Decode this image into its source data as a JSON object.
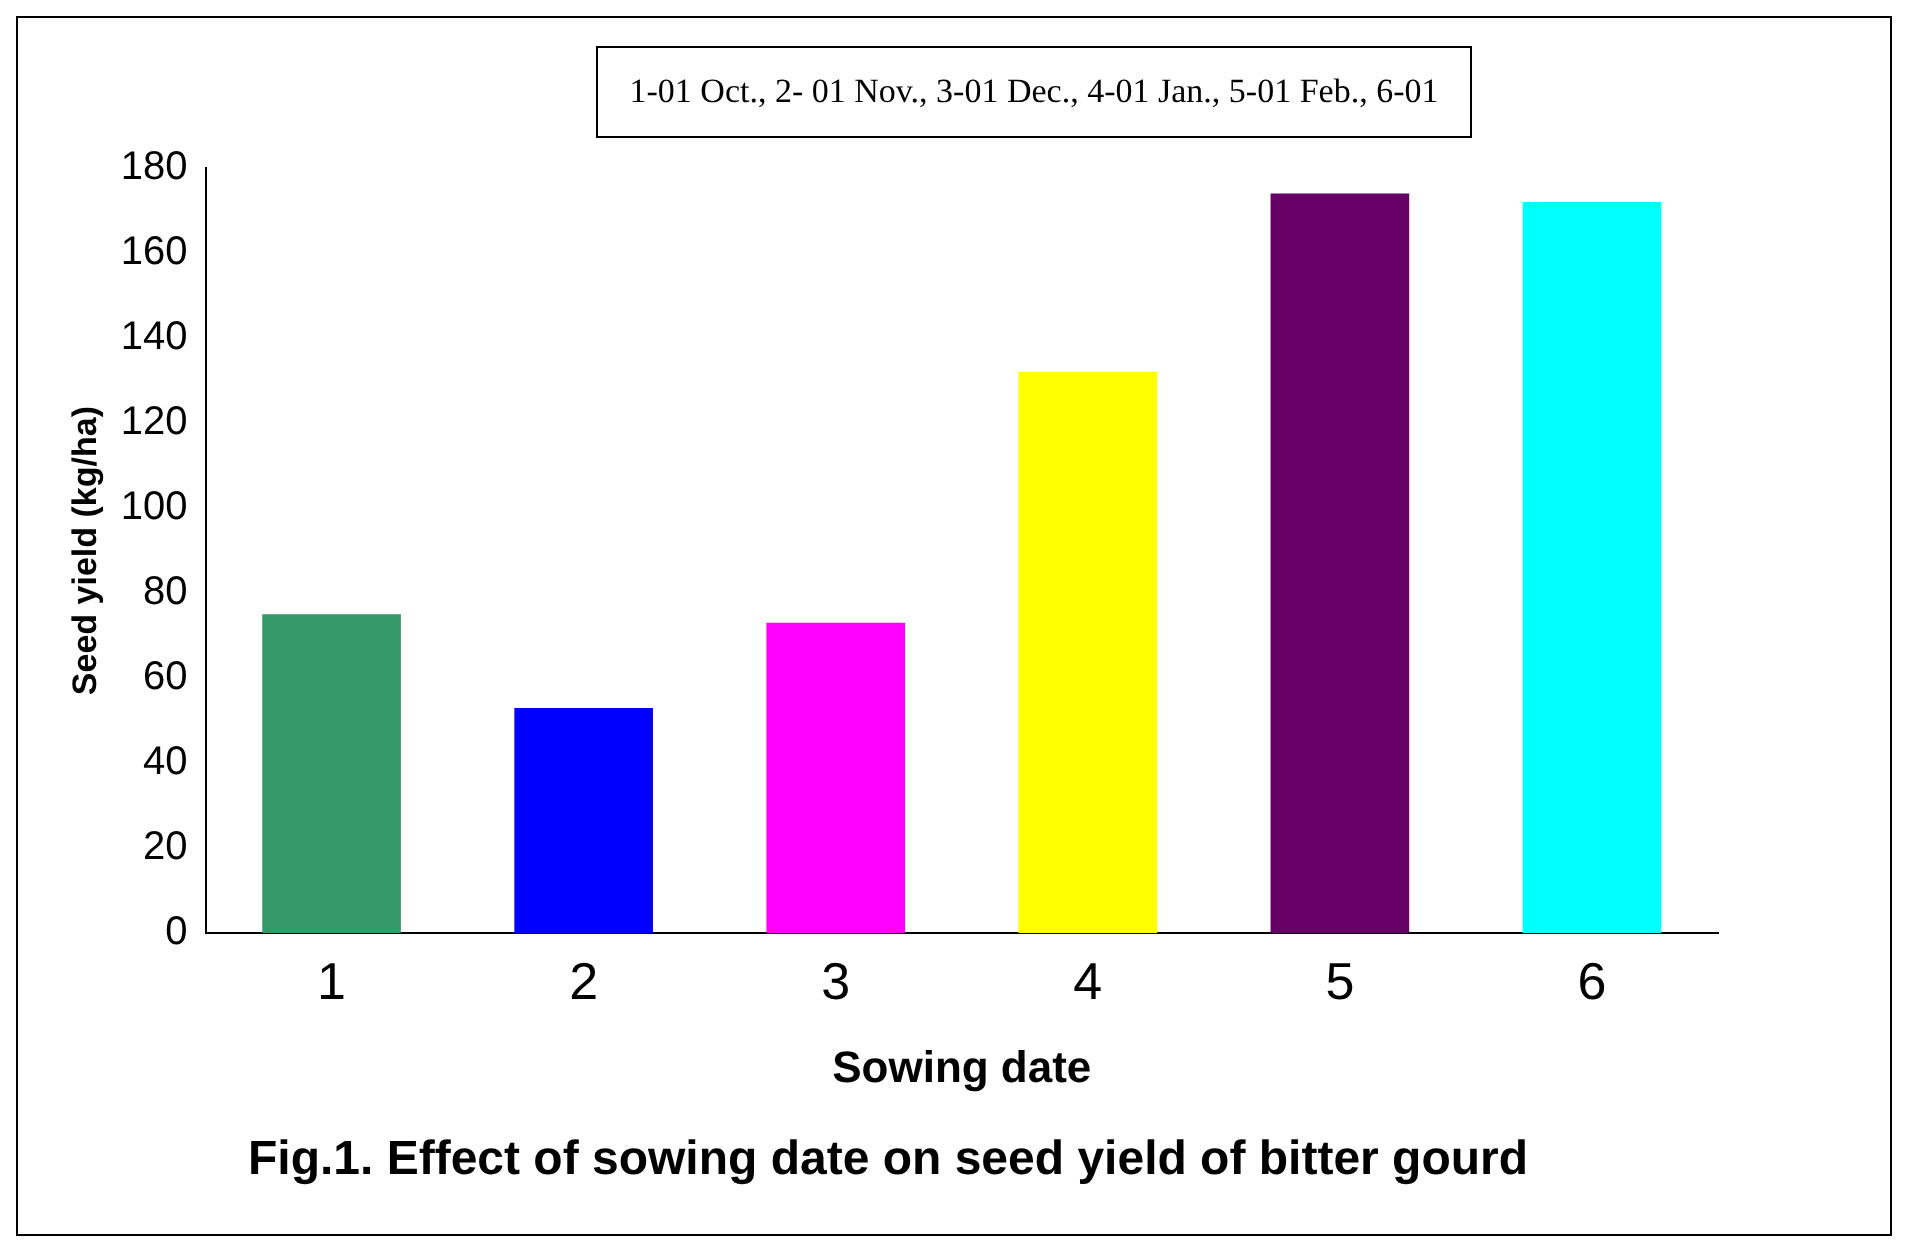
{
  "chart_data": {
    "type": "bar",
    "title": "Fig.1. Effect of sowing date on seed yield of bitter gourd",
    "xlabel": "Sowing date",
    "ylabel": "Seed yield (kg/ha)",
    "annotations": [
      "1-01 Oct., 2- 01 Nov., 3-01 Dec., 4-01 Jan., 5-01 Feb., 6-01"
    ],
    "categories": [
      "1",
      "2",
      "3",
      "4",
      "5",
      "6"
    ],
    "values": [
      75,
      53,
      73,
      132,
      174,
      172
    ],
    "colors": [
      "#339966",
      "#0000ff",
      "#ff00ff",
      "#ffff00",
      "#660066",
      "#00ffff"
    ],
    "ylim": [
      0,
      180
    ],
    "yticks": [
      0,
      20,
      40,
      60,
      80,
      100,
      120,
      140,
      160,
      180
    ],
    "grid": false,
    "legend": false
  }
}
